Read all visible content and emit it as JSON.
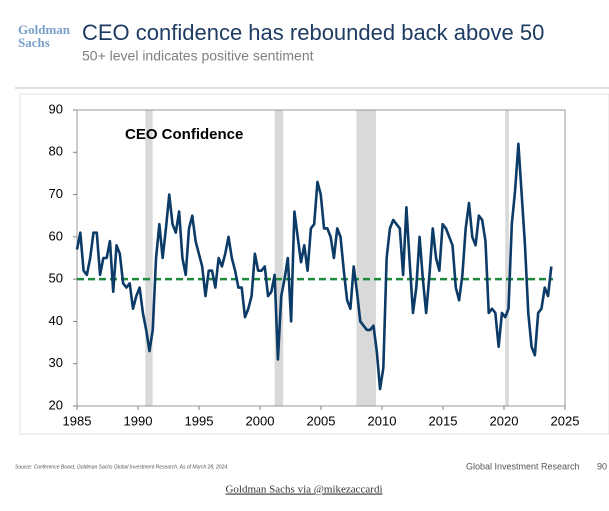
{
  "logo": [
    "Goldman",
    "Sachs"
  ],
  "chart_data": {
    "type": "line",
    "title": "CEO confidence has rebounded back above 50",
    "subtitle": "50+ level indicates positive sentiment",
    "annotation": "CEO Confidence",
    "x": [
      1985,
      1985.27,
      1985.54,
      1985.81,
      1986.08,
      1986.35,
      1986.62,
      1986.89,
      1987.16,
      1987.43,
      1987.7,
      1987.97,
      1988.24,
      1988.51,
      1988.78,
      1989.05,
      1989.32,
      1989.59,
      1989.86,
      1990.13,
      1990.4,
      1990.67,
      1990.94,
      1991.21,
      1991.48,
      1991.75,
      1992.02,
      1992.29,
      1992.56,
      1992.83,
      1993.1,
      1993.37,
      1993.64,
      1993.91,
      1994.18,
      1994.45,
      1994.72,
      1994.99,
      1995.26,
      1995.53,
      1995.8,
      1996.07,
      1996.34,
      1996.61,
      1996.88,
      1997.15,
      1997.42,
      1997.69,
      1997.96,
      1998.23,
      1998.5,
      1998.77,
      1999.04,
      1999.31,
      1999.58,
      1999.85,
      2000.12,
      2000.39,
      2000.66,
      2000.93,
      2001.2,
      2001.47,
      2001.74,
      2002.01,
      2002.28,
      2002.55,
      2002.82,
      2003.09,
      2003.36,
      2003.63,
      2003.9,
      2004.17,
      2004.44,
      2004.71,
      2004.98,
      2005.25,
      2005.52,
      2005.79,
      2006.06,
      2006.33,
      2006.6,
      2006.87,
      2007.14,
      2007.41,
      2007.68,
      2007.95,
      2008.22,
      2008.49,
      2008.76,
      2009.03,
      2009.3,
      2009.57,
      2009.84,
      2010.11,
      2010.38,
      2010.65,
      2010.92,
      2011.19,
      2011.46,
      2011.73,
      2012,
      2012.27,
      2012.54,
      2012.81,
      2013.08,
      2013.35,
      2013.62,
      2013.89,
      2014.16,
      2014.43,
      2014.7,
      2014.97,
      2015.24,
      2015.51,
      2015.78,
      2016.05,
      2016.32,
      2016.59,
      2016.86,
      2017.13,
      2017.4,
      2017.67,
      2017.94,
      2018.21,
      2018.48,
      2018.75,
      2019.02,
      2019.29,
      2019.56,
      2019.83,
      2020.1,
      2020.37,
      2020.64,
      2020.91,
      2021.18,
      2021.45,
      2021.72,
      2021.99,
      2022.26,
      2022.53,
      2022.8,
      2023.07,
      2023.34,
      2023.61,
      2023.88
    ],
    "values": [
      57,
      61,
      52,
      51,
      55,
      61,
      61,
      51,
      55,
      55,
      59,
      47,
      58,
      56,
      49,
      48,
      49,
      43,
      46,
      48,
      42,
      38,
      33,
      38,
      55,
      63,
      55,
      62,
      70,
      63,
      61,
      66,
      55,
      51,
      62,
      65,
      59,
      56,
      53,
      46,
      52,
      52,
      48,
      55,
      53,
      56,
      60,
      55,
      52,
      48,
      48,
      41,
      43,
      46,
      56,
      52,
      52,
      53,
      46,
      47,
      51,
      31,
      46,
      50,
      55,
      40,
      66,
      60,
      54,
      58,
      52,
      62,
      63,
      73,
      70,
      62,
      62,
      60,
      55,
      62,
      60,
      52,
      45,
      43,
      53,
      47,
      40,
      39,
      38,
      38,
      39,
      33,
      24,
      29,
      55,
      62,
      64,
      63,
      62,
      51,
      67,
      54,
      42,
      48,
      60,
      50,
      42,
      51,
      62,
      55,
      52,
      63,
      62,
      60,
      58,
      48,
      45,
      51,
      62,
      68,
      60,
      58,
      65,
      64,
      59,
      42,
      43,
      42,
      34,
      42,
      41,
      43,
      63,
      71,
      82,
      70,
      58,
      42,
      34,
      32,
      42,
      43,
      48,
      46,
      53
    ],
    "color": "#0c3b67",
    "reference_line": {
      "value": 50,
      "color": "#1e8a3c"
    },
    "recessions": [
      [
        1990.6,
        1991.2
      ],
      [
        2001.2,
        2001.9
      ],
      [
        2007.9,
        2009.5
      ],
      [
        2020.1,
        2020.4
      ]
    ],
    "recession_color": "#d9d9d9",
    "xlim": [
      1985,
      2025
    ],
    "xticks": [
      1985,
      1990,
      1995,
      2000,
      2005,
      2010,
      2015,
      2020,
      2025
    ],
    "ylim": [
      20,
      90
    ],
    "yticks": [
      20,
      30,
      40,
      50,
      60,
      70,
      80,
      90
    ]
  },
  "footer": {
    "source": "Source: Conference Board, Goldman Sachs Global Investment Research. As of March 28, 2024.",
    "right": "Global Investment Research",
    "page": "90"
  },
  "credit": "Goldman Sachs via @mikezaccardi"
}
